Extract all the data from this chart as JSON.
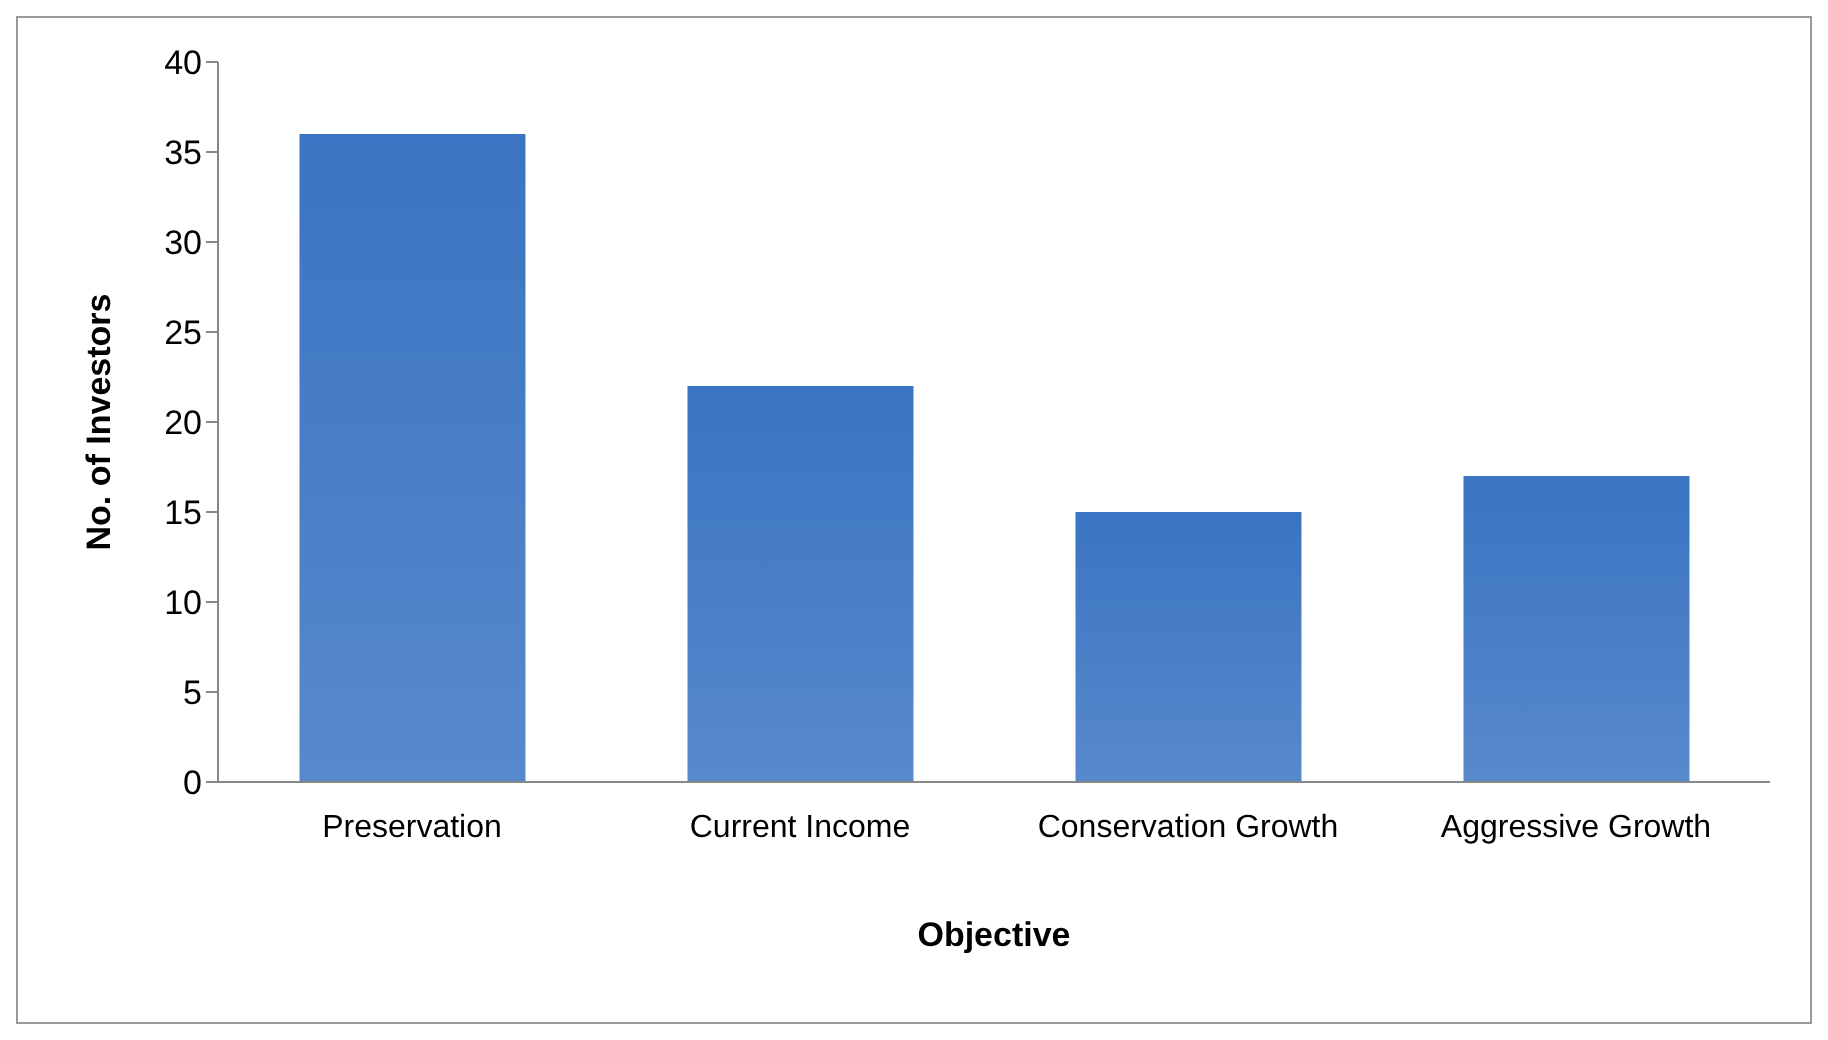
{
  "chart_data": {
    "type": "bar",
    "xlabel": "Objective",
    "ylabel": "No. of Investors",
    "categories": [
      "Preservation",
      "Current Income",
      "Conservation Growth",
      "Aggressive Growth"
    ],
    "values": [
      36,
      22,
      15,
      17
    ],
    "color": "#3a74c2",
    "ylim": [
      0,
      40
    ],
    "yticks": [
      0,
      5,
      10,
      15,
      20,
      25,
      30,
      35,
      40
    ],
    "grid": false
  }
}
